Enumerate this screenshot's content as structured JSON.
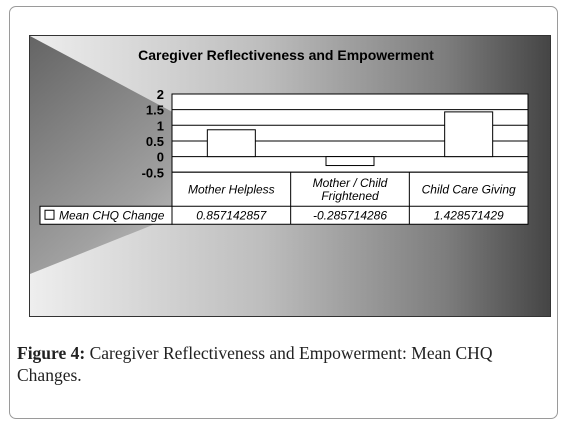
{
  "caption": {
    "label": "Figure 4:",
    "text": " Caregiver Reflectiveness and Empowerment: Mean CHQ Changes."
  },
  "colors": {
    "bar_fill": "#ffffff",
    "stroke": "#000000",
    "background_light": "#eeeeee",
    "background_dark": "#454545"
  },
  "chart_data": {
    "type": "bar",
    "title": "Caregiver Reflectiveness and Empowerment",
    "categories": [
      "Mother Helpless",
      "Mother / Child Frightened",
      "Child Care Giving"
    ],
    "series": [
      {
        "name": "Mean CHQ Change",
        "values": [
          0.857142857,
          -0.285714286,
          1.428571429
        ]
      }
    ],
    "value_labels": [
      "0.857142857",
      "-0.285714286",
      "1.428571429"
    ],
    "yticks": [
      "2",
      "1.5",
      "1",
      "0.5",
      "0",
      "-0.5"
    ],
    "ylim": [
      -0.5,
      2
    ],
    "xlabel": "",
    "ylabel": "",
    "grid": true,
    "legend": "data-table",
    "has_data_table": true
  }
}
